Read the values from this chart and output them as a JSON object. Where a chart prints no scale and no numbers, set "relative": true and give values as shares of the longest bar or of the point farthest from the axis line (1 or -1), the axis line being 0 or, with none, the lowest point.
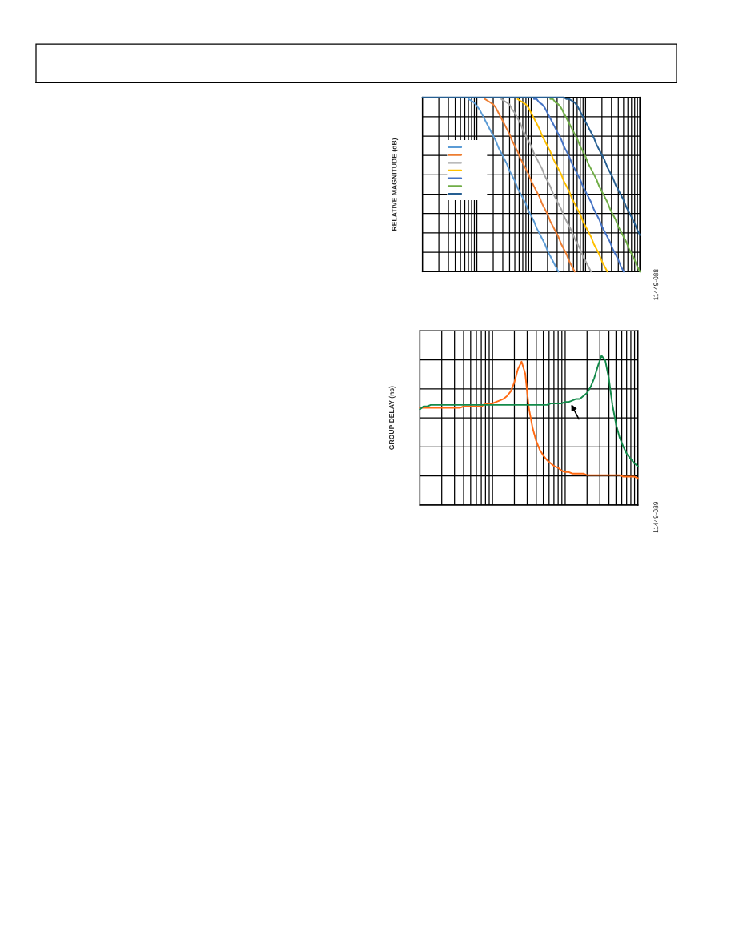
{
  "chart_data": [
    {
      "type": "line",
      "relative": true,
      "ylabel": "RELATIVE MAGNITUDE (dB)",
      "grid": true,
      "tick_labels": false,
      "annotations": [
        "11449-088"
      ],
      "categories": [
        null,
        null,
        null,
        null,
        null,
        null,
        null,
        null,
        null,
        null,
        null,
        null,
        null,
        null,
        null,
        null,
        null,
        null,
        null,
        null,
        null,
        null,
        null,
        null,
        null,
        null,
        null,
        null,
        null,
        null,
        null,
        null,
        null,
        null,
        null,
        null,
        null,
        null,
        null,
        null,
        null,
        null,
        null,
        null,
        null,
        null,
        null,
        null,
        null,
        null,
        null,
        null,
        null,
        null,
        null,
        null,
        null,
        null,
        null,
        null,
        null,
        null,
        null,
        null,
        null,
        null,
        null,
        null,
        null,
        null,
        null,
        null,
        null,
        null,
        null,
        null,
        null,
        null,
        null,
        null,
        null
      ],
      "series": [
        {
          "color": "#5b9bd5",
          "values": [
            null,
            null,
            null,
            null,
            null,
            null,
            null,
            null,
            null,
            null,
            null,
            null,
            null,
            null,
            null,
            null,
            null,
            0.99,
            0.98,
            0.97,
            0.95,
            0.93,
            0.9,
            0.87,
            0.84,
            0.81,
            0.78,
            0.75,
            0.71,
            0.68,
            0.65,
            0.62,
            0.58,
            0.55,
            0.52,
            0.48,
            0.45,
            0.42,
            0.39,
            0.35,
            0.32,
            0.29,
            0.25,
            0.22,
            0.19,
            0.16,
            0.12,
            0.09,
            0.06,
            0.03,
            0.0,
            null,
            null,
            null,
            null,
            null,
            null,
            null,
            null,
            null,
            null,
            null,
            null,
            null,
            null,
            null,
            null,
            null,
            null,
            null,
            null,
            null,
            null,
            null,
            null,
            null,
            null,
            null,
            null,
            null,
            null
          ]
        },
        {
          "color": "#ed7d31",
          "values": [
            null,
            null,
            null,
            null,
            null,
            null,
            null,
            null,
            null,
            null,
            null,
            null,
            null,
            null,
            null,
            null,
            null,
            null,
            null,
            null,
            null,
            null,
            null,
            0.99,
            0.98,
            0.97,
            0.96,
            0.94,
            0.91,
            0.88,
            0.85,
            0.82,
            0.79,
            0.75,
            0.72,
            0.69,
            0.65,
            0.62,
            0.59,
            0.56,
            0.52,
            0.49,
            0.46,
            0.43,
            0.39,
            0.36,
            0.33,
            0.29,
            0.26,
            0.23,
            0.2,
            0.16,
            0.13,
            0.1,
            0.06,
            0.03,
            0.0,
            null,
            null,
            null,
            null,
            null,
            null,
            null,
            null,
            null,
            null,
            null,
            null,
            null,
            null,
            null,
            null,
            null,
            null,
            null,
            null,
            null,
            null,
            null,
            null
          ]
        },
        {
          "color": "#a5a5a5",
          "values": [
            null,
            null,
            null,
            null,
            null,
            null,
            null,
            null,
            null,
            null,
            null,
            null,
            null,
            null,
            null,
            null,
            null,
            null,
            null,
            null,
            null,
            null,
            null,
            null,
            null,
            null,
            null,
            null,
            null,
            0.99,
            0.98,
            0.97,
            0.96,
            0.93,
            0.91,
            0.88,
            0.85,
            0.81,
            0.78,
            0.75,
            0.72,
            0.68,
            0.65,
            0.62,
            0.59,
            0.55,
            0.52,
            0.49,
            0.45,
            0.42,
            0.39,
            0.36,
            0.32,
            0.29,
            0.26,
            0.23,
            0.19,
            0.16,
            0.13,
            0.09,
            0.06,
            0.03,
            0.0,
            null,
            null,
            null,
            null,
            null,
            null,
            null,
            null,
            null,
            null,
            null,
            null,
            null,
            null,
            null,
            null,
            null,
            null
          ]
        },
        {
          "color": "#ffc000",
          "values": [
            null,
            null,
            null,
            null,
            null,
            null,
            null,
            null,
            null,
            null,
            null,
            null,
            null,
            null,
            null,
            null,
            null,
            null,
            null,
            null,
            null,
            null,
            null,
            null,
            null,
            null,
            null,
            null,
            null,
            null,
            null,
            null,
            null,
            null,
            null,
            0.99,
            0.98,
            0.97,
            0.96,
            0.94,
            0.91,
            0.88,
            0.85,
            0.82,
            0.78,
            0.75,
            0.72,
            0.69,
            0.65,
            0.62,
            0.59,
            0.56,
            0.52,
            0.49,
            0.46,
            0.42,
            0.39,
            0.36,
            0.33,
            0.29,
            0.26,
            0.23,
            0.2,
            0.16,
            0.13,
            0.1,
            0.06,
            0.03,
            0.0,
            null,
            null,
            null,
            null,
            null,
            null,
            null,
            null,
            null,
            null,
            null,
            null
          ]
        },
        {
          "color": "#4472c4",
          "values": [
            null,
            null,
            null,
            null,
            null,
            null,
            null,
            null,
            null,
            null,
            null,
            null,
            null,
            null,
            null,
            null,
            null,
            null,
            null,
            null,
            null,
            null,
            null,
            null,
            null,
            null,
            null,
            null,
            null,
            null,
            null,
            null,
            null,
            null,
            null,
            null,
            null,
            null,
            null,
            null,
            null,
            0.99,
            0.99,
            0.97,
            0.96,
            0.94,
            0.91,
            0.88,
            0.85,
            0.82,
            0.79,
            0.76,
            0.72,
            0.69,
            0.66,
            0.62,
            0.59,
            0.56,
            0.53,
            0.49,
            0.46,
            0.43,
            0.4,
            0.36,
            0.33,
            0.3,
            0.26,
            0.23,
            0.2,
            0.17,
            0.13,
            0.1,
            0.07,
            0.03,
            0.0,
            null,
            null,
            null,
            null,
            null,
            null
          ]
        },
        {
          "color": "#70ad47",
          "values": [
            null,
            null,
            null,
            null,
            null,
            null,
            null,
            null,
            null,
            null,
            null,
            null,
            null,
            null,
            null,
            null,
            null,
            null,
            null,
            null,
            null,
            null,
            null,
            null,
            null,
            null,
            null,
            null,
            null,
            null,
            null,
            null,
            null,
            null,
            null,
            null,
            null,
            null,
            null,
            null,
            null,
            null,
            null,
            null,
            null,
            null,
            null,
            0.99,
            0.99,
            0.97,
            0.96,
            0.94,
            0.91,
            0.88,
            0.85,
            0.82,
            0.79,
            0.76,
            0.72,
            0.69,
            0.66,
            0.62,
            0.59,
            0.56,
            0.53,
            0.49,
            0.46,
            0.43,
            0.4,
            0.36,
            0.33,
            0.3,
            0.26,
            0.23,
            0.2,
            0.17,
            0.13,
            0.1,
            0.07,
            0.03,
            0.0
          ]
        },
        {
          "color": "#255e91",
          "values": [
            1,
            1,
            1,
            1,
            1,
            1,
            1,
            1,
            1,
            1,
            1,
            1,
            1,
            1,
            1,
            1,
            1,
            1,
            1,
            1,
            1,
            1,
            1,
            1,
            1,
            1,
            1,
            1,
            1,
            1,
            1,
            1,
            1,
            1,
            1,
            1,
            1,
            1,
            1,
            1,
            1,
            1,
            1,
            1,
            1,
            1,
            1,
            1,
            1,
            1,
            1,
            1,
            1,
            0.99,
            0.99,
            0.98,
            0.97,
            0.95,
            0.92,
            0.89,
            0.86,
            0.83,
            0.8,
            0.77,
            0.73,
            0.7,
            0.67,
            0.64,
            0.6,
            0.57,
            0.54,
            0.5,
            0.47,
            0.44,
            0.41,
            0.37,
            0.34,
            0.31,
            0.28,
            0.24,
            0.21
          ]
        }
      ]
    },
    {
      "type": "line",
      "relative": true,
      "ylabel": "GROUP DELAY (ns)",
      "grid": true,
      "tick_labels": false,
      "annotations": [
        "11449-089"
      ],
      "categories": [
        null,
        null,
        null,
        null,
        null,
        null,
        null,
        null,
        null,
        null,
        null,
        null,
        null,
        null,
        null,
        null,
        null,
        null,
        null,
        null,
        null,
        null,
        null,
        null,
        null,
        null,
        null,
        null,
        null,
        null,
        null,
        null,
        null,
        null,
        null,
        null,
        null,
        null,
        null,
        null,
        null,
        null,
        null,
        null,
        null,
        null,
        null,
        null,
        null,
        null,
        null,
        null,
        null,
        null,
        null,
        null,
        null,
        null,
        null,
        null,
        null
      ],
      "series": [
        {
          "color": "#ff6a13",
          "values": [
            0.65,
            0.65,
            0.65,
            0.65,
            0.65,
            0.65,
            0.65,
            0.65,
            0.65,
            0.65,
            0.65,
            0.65,
            0.66,
            0.66,
            0.66,
            0.66,
            0.66,
            0.66,
            0.68,
            0.68,
            0.68,
            0.69,
            0.7,
            0.71,
            0.73,
            0.76,
            0.82,
            0.91,
            0.96,
            0.88,
            0.65,
            0.52,
            0.43,
            0.37,
            0.33,
            0.3,
            0.28,
            0.26,
            0.25,
            0.23,
            0.22,
            0.22,
            0.21,
            0.21,
            0.21,
            0.21,
            0.2,
            0.2,
            0.2,
            0.2,
            0.2,
            0.2,
            0.2,
            0.2,
            0.2,
            0.2,
            0.19,
            0.19,
            0.19,
            0.19,
            0.18
          ]
        },
        {
          "color": "#138a4a",
          "values": [
            0.64,
            0.66,
            0.66,
            0.67,
            0.67,
            0.67,
            0.67,
            0.67,
            0.67,
            0.67,
            0.67,
            0.67,
            0.67,
            0.67,
            0.67,
            0.67,
            0.67,
            0.67,
            0.67,
            0.67,
            0.67,
            0.67,
            0.67,
            0.67,
            0.67,
            0.67,
            0.67,
            0.67,
            0.67,
            0.67,
            0.67,
            0.67,
            0.67,
            0.67,
            0.67,
            0.67,
            0.68,
            0.68,
            0.68,
            0.68,
            0.69,
            0.69,
            0.7,
            0.71,
            0.71,
            0.73,
            0.75,
            0.79,
            0.85,
            0.93,
            1,
            0.97,
            0.85,
            0.67,
            0.54,
            0.45,
            0.39,
            0.34,
            0.31,
            0.28,
            0.26
          ]
        }
      ]
    }
  ]
}
